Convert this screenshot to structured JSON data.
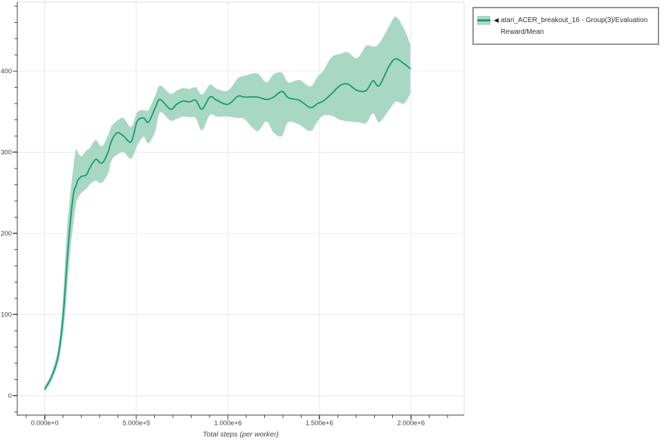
{
  "legend": {
    "marker": "◀",
    "label": "atari_ACER_breakout_16 - Group(3)/Evaluation Reward/Mean"
  },
  "colors": {
    "line": "#1d9c73",
    "band": "#a8d8c4",
    "grid": "#e8e8e8",
    "frame": "#dcdcdc",
    "axis": "#3a3a3a",
    "tick_text": "#3d3d3d",
    "axis_title_text": "#444444",
    "legend_border": "#8f8f8f",
    "background": "#ffffff"
  },
  "chart_data": {
    "type": "line",
    "title": "",
    "xlabel": "Total steps (per worker)",
    "ylabel": "",
    "grid": true,
    "legend_position": "outside-top-right",
    "xlim": [
      -150000,
      2290000
    ],
    "ylim": [
      -24,
      485
    ],
    "x_ticks": {
      "values": [
        0,
        500000,
        1000000,
        1500000,
        2000000
      ],
      "labels": [
        "0.000e+0",
        "5.000e+5",
        "1.000e+6",
        "1.500e+6",
        "2.000e+6"
      ],
      "minor": {
        "step": 100000,
        "min": -100000,
        "max": 2200000
      }
    },
    "y_ticks": {
      "values": [
        0,
        100,
        200,
        300,
        400
      ],
      "labels": [
        "0",
        "100",
        "200",
        "300",
        "400"
      ],
      "minor": {
        "step": 20,
        "min": -20,
        "max": 480
      }
    },
    "series": [
      {
        "name": "atari_ACER_breakout_16 - Group(3)/Evaluation Reward/Mean",
        "color": "#1d9c73",
        "band_color": "#a8d8c4",
        "marker": "◀",
        "x": [
          0,
          35000,
          70000,
          90000,
          105000,
          120000,
          140000,
          158000,
          170000,
          180000,
          200000,
          227000,
          245000,
          277000,
          302000,
          320000,
          346000,
          365000,
          396000,
          430000,
          472000,
          505000,
          540000,
          566000,
          604000,
          630000,
          686000,
          720000,
          755000,
          790000,
          824000,
          859000,
          902000,
          940000,
          1000000,
          1055000,
          1090000,
          1160000,
          1210000,
          1250000,
          1295000,
          1330000,
          1390000,
          1450000,
          1490000,
          1520000,
          1566000,
          1612000,
          1654000,
          1707000,
          1755000,
          1792000,
          1826000,
          1880000,
          1916000,
          1962000,
          1996000
        ],
        "mean": [
          8,
          22,
          45,
          75,
          110,
          160,
          215,
          250,
          258,
          265,
          270,
          272,
          280,
          291,
          287,
          288,
          300,
          314,
          324,
          320,
          313,
          338,
          342,
          337,
          355,
          365,
          353,
          359,
          363,
          362,
          364,
          353,
          368,
          364,
          359,
          369,
          368,
          368,
          365,
          368,
          375,
          367,
          364,
          355,
          360,
          363,
          372,
          382,
          384,
          376,
          376,
          388,
          382,
          406,
          415,
          409,
          403
        ],
        "lower": [
          5,
          18,
          38,
          60,
          85,
          125,
          180,
          215,
          235,
          243,
          250,
          255,
          260,
          265,
          262,
          264,
          274,
          290,
          297,
          300,
          292,
          308,
          319,
          311,
          326,
          349,
          339,
          341,
          344,
          343,
          342,
          327,
          346,
          344,
          344,
          342,
          341,
          326,
          338,
          324,
          320,
          337,
          334,
          326,
          338,
          345,
          345,
          340,
          338,
          337,
          336,
          348,
          337,
          352,
          362,
          360,
          372
        ],
        "upper": [
          12,
          27,
          55,
          92,
          140,
          200,
          250,
          285,
          303,
          300,
          295,
          302,
          305,
          315,
          308,
          309,
          321,
          332,
          339,
          342,
          331,
          349,
          352,
          352,
          370,
          382,
          372,
          376,
          379,
          378,
          380,
          371,
          383,
          378,
          376,
          391,
          394,
          397,
          386,
          396,
          398,
          386,
          389,
          381,
          393,
          400,
          417,
          421,
          423,
          416,
          431,
          430,
          434,
          455,
          467,
          452,
          433
        ]
      }
    ]
  }
}
